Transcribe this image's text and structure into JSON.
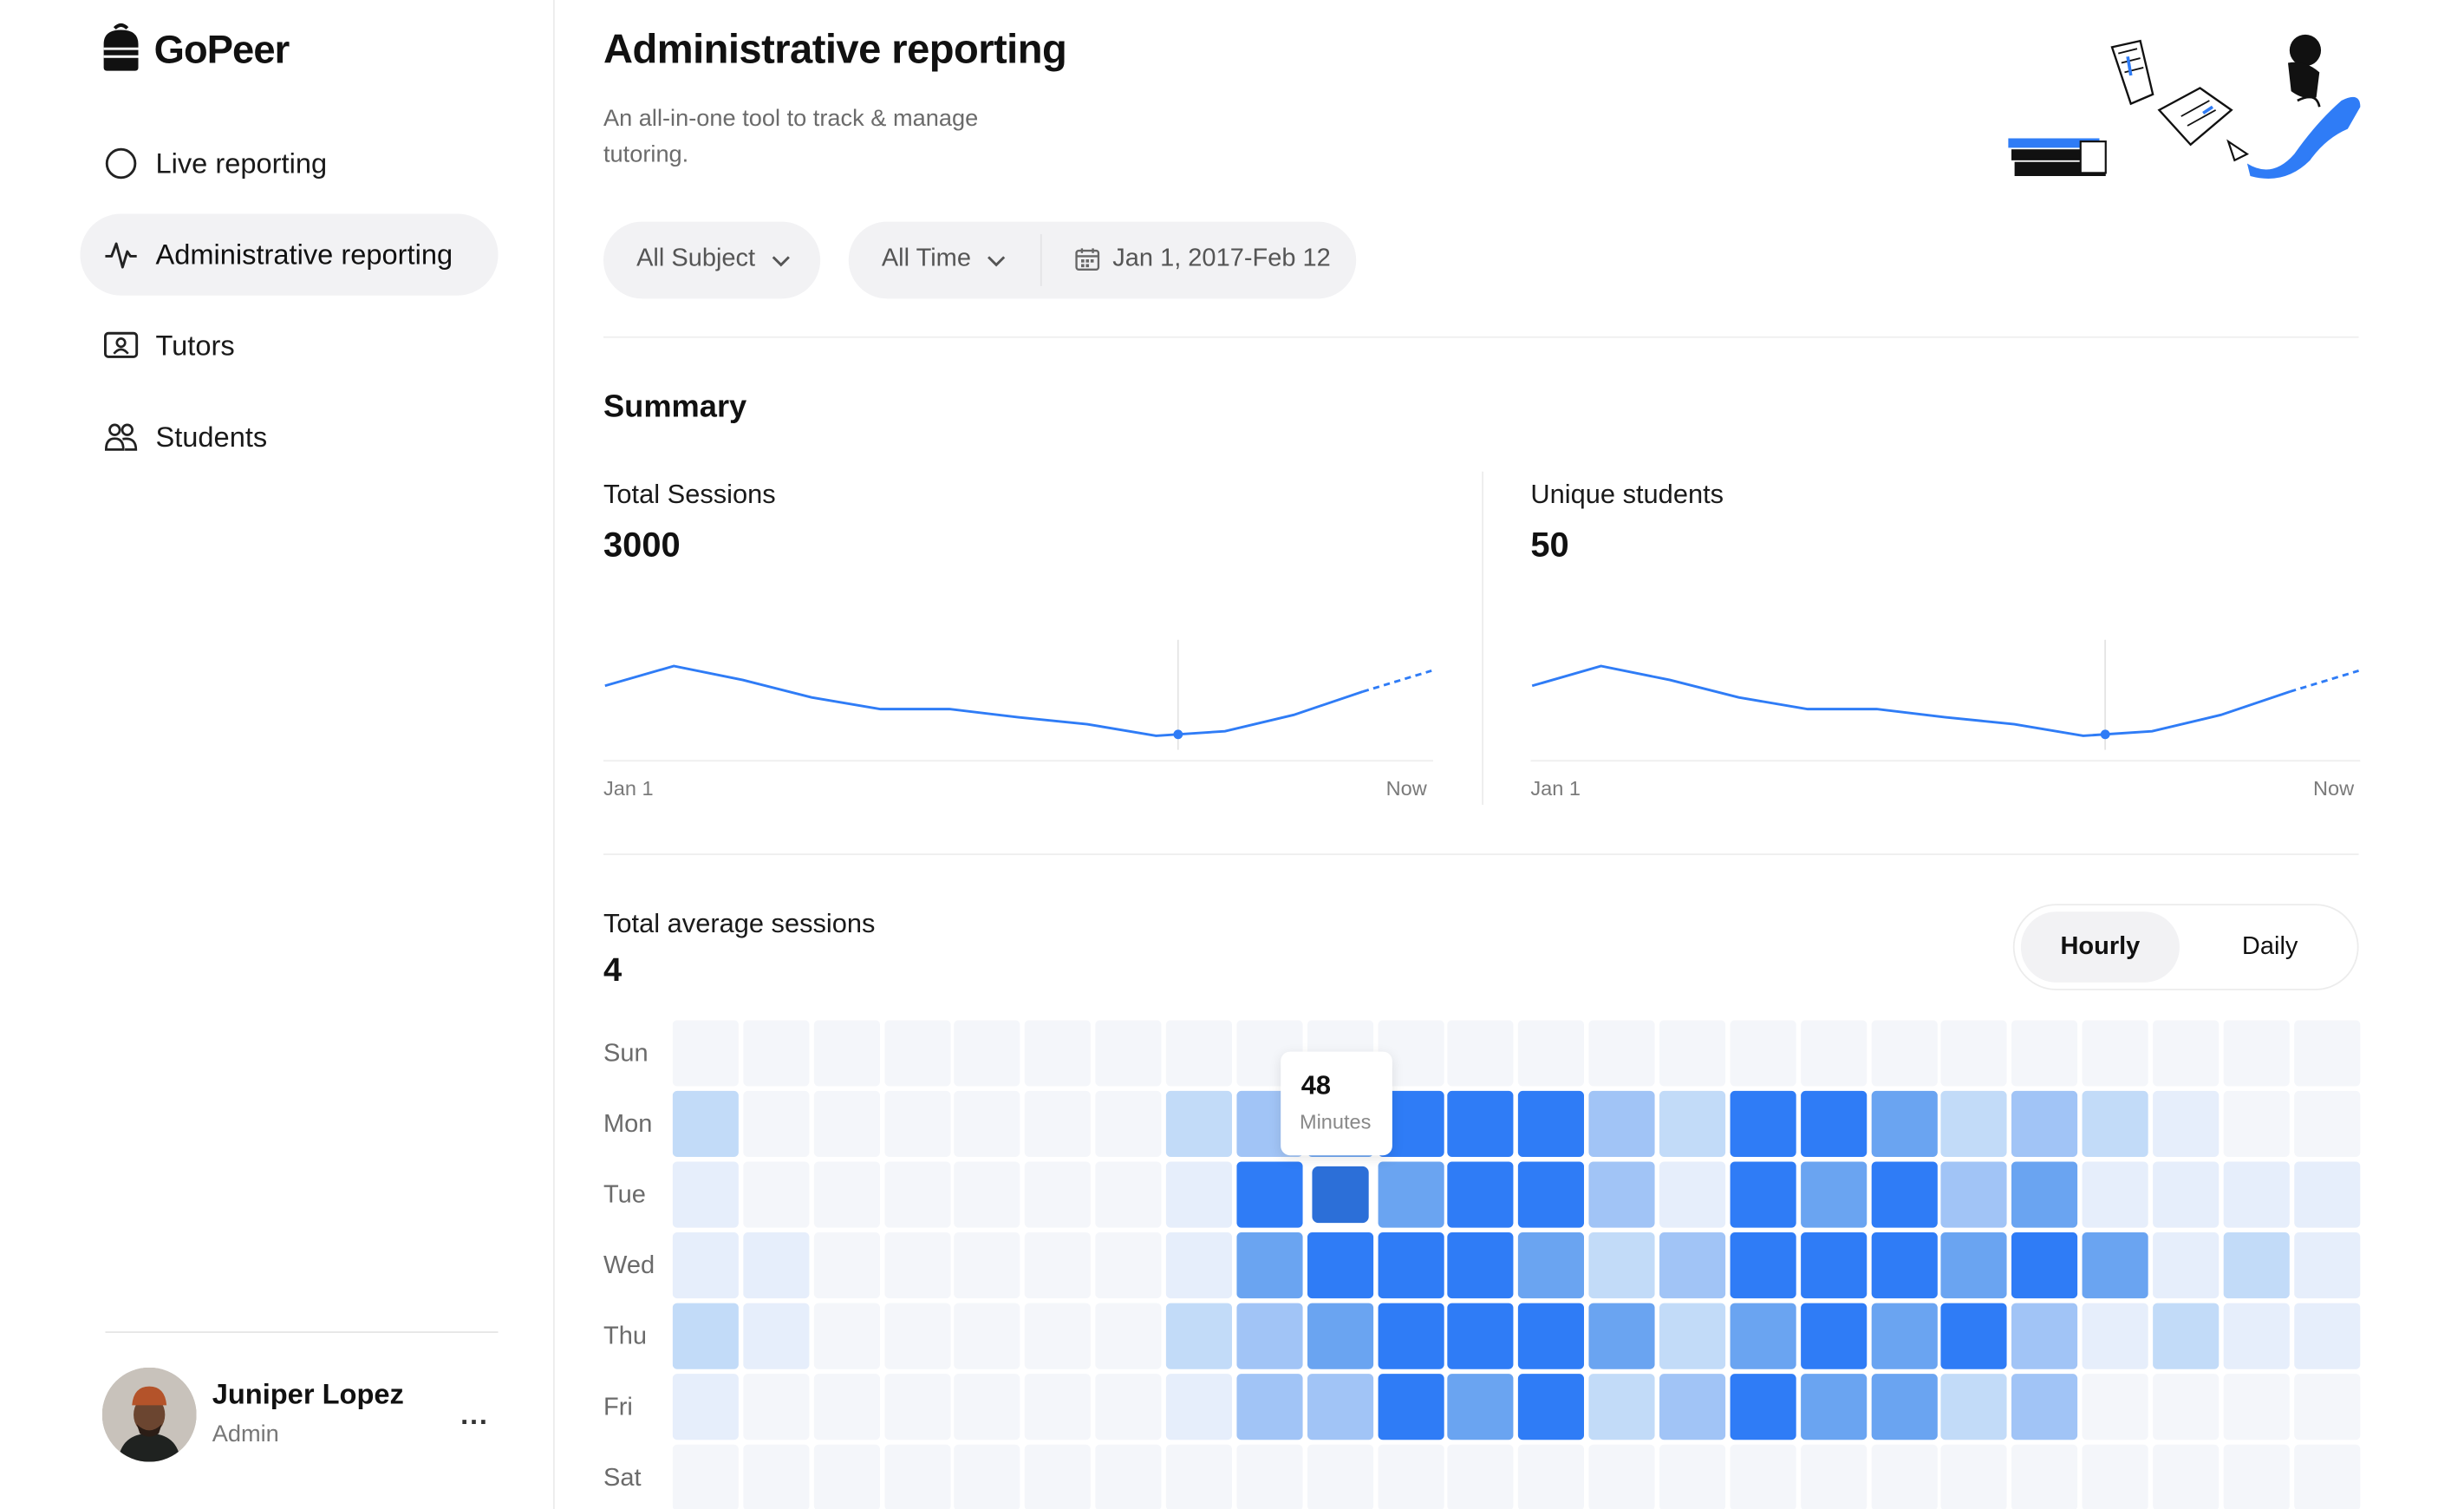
{
  "brand": {
    "name": "GoPeer"
  },
  "sidebar": {
    "items": [
      {
        "label": "Live reporting",
        "icon": "circle-icon",
        "active": false
      },
      {
        "label": "Administrative reporting",
        "icon": "pulse-icon",
        "active": true
      },
      {
        "label": "Tutors",
        "icon": "id-card-icon",
        "active": false
      },
      {
        "label": "Students",
        "icon": "users-icon",
        "active": false
      }
    ]
  },
  "user": {
    "name": "Juniper Lopez",
    "role": "Admin",
    "menu": "..."
  },
  "header": {
    "title": "Administrative reporting",
    "subtitle": "An all-in-one tool to track & manage tutoring."
  },
  "filters": {
    "subject": "All Subject",
    "time": "All Time",
    "date_range": "Jan 1, 2017-Feb 12"
  },
  "summary": {
    "title": "Summary",
    "total_sessions": {
      "label": "Total Sessions",
      "value": "3000",
      "x_start": "Jan 1",
      "x_end": "Now"
    },
    "unique_students": {
      "label": "Unique students",
      "value": "50",
      "x_start": "Jan 1",
      "x_end": "Now"
    }
  },
  "chart_data": [
    {
      "type": "line",
      "title": "Total Sessions",
      "x_labels": [
        "Jan 1",
        "Now"
      ],
      "points": [
        0.55,
        0.72,
        0.6,
        0.45,
        0.35,
        0.35,
        0.28,
        0.22,
        0.12,
        0.16,
        0.3,
        0.5,
        0.68
      ],
      "dashed_from_index": 11,
      "marker_index": 8
    },
    {
      "type": "line",
      "title": "Unique students",
      "x_labels": [
        "Jan 1",
        "Now"
      ],
      "points": [
        0.55,
        0.72,
        0.6,
        0.45,
        0.35,
        0.35,
        0.28,
        0.22,
        0.12,
        0.16,
        0.3,
        0.5,
        0.68
      ],
      "dashed_from_index": 11,
      "marker_index": 8
    },
    {
      "type": "heatmap",
      "title": "Total average sessions",
      "value": "4",
      "rows": [
        "Sun",
        "Mon",
        "Tue",
        "Wed",
        "Thu",
        "Fri",
        "Sat"
      ],
      "columns": 24,
      "levels": [
        [
          0,
          0,
          0,
          0,
          0,
          0,
          0,
          0,
          0,
          0,
          0,
          0,
          0,
          0,
          0,
          0,
          0,
          0,
          0,
          0,
          0,
          0,
          0,
          0
        ],
        [
          2,
          0,
          0,
          0,
          0,
          0,
          0,
          2,
          3,
          4,
          5,
          5,
          5,
          3,
          2,
          5,
          5,
          4,
          2,
          3,
          2,
          1,
          0,
          0
        ],
        [
          1,
          0,
          0,
          0,
          0,
          0,
          0,
          1,
          5,
          6,
          4,
          5,
          5,
          3,
          1,
          5,
          4,
          5,
          3,
          4,
          1,
          1,
          1,
          1
        ],
        [
          1,
          1,
          0,
          0,
          0,
          0,
          0,
          1,
          4,
          5,
          5,
          5,
          4,
          2,
          3,
          5,
          5,
          5,
          4,
          5,
          4,
          1,
          2,
          1
        ],
        [
          2,
          1,
          0,
          0,
          0,
          0,
          0,
          2,
          3,
          4,
          5,
          5,
          5,
          4,
          2,
          4,
          5,
          4,
          5,
          3,
          1,
          2,
          1,
          1
        ],
        [
          1,
          0,
          0,
          0,
          0,
          0,
          0,
          1,
          3,
          3,
          5,
          4,
          5,
          2,
          3,
          5,
          4,
          4,
          2,
          3,
          0,
          0,
          0,
          0
        ],
        [
          0,
          0,
          0,
          0,
          0,
          0,
          0,
          0,
          0,
          0,
          0,
          0,
          0,
          0,
          0,
          0,
          0,
          0,
          0,
          0,
          0,
          0,
          0,
          0
        ]
      ],
      "highlight": {
        "row": 2,
        "col": 9
      }
    }
  ],
  "sessions": {
    "title": "Total average sessions",
    "value": "4",
    "toggle": {
      "hourly": "Hourly",
      "daily": "Daily",
      "selected": "Hourly"
    },
    "tooltip": {
      "value": "48",
      "unit": "Minutes"
    },
    "days": [
      "Sun",
      "Mon",
      "Tue",
      "Wed",
      "Thu",
      "Fri",
      "Sat"
    ]
  },
  "colors": {
    "accent": "#2f7cf6",
    "heat": [
      "#f4f6fa",
      "#e6eefb",
      "#c2dbf8",
      "#a1c4f6",
      "#6aa4f1",
      "#2f7cf6",
      "#2c6fd8"
    ]
  }
}
